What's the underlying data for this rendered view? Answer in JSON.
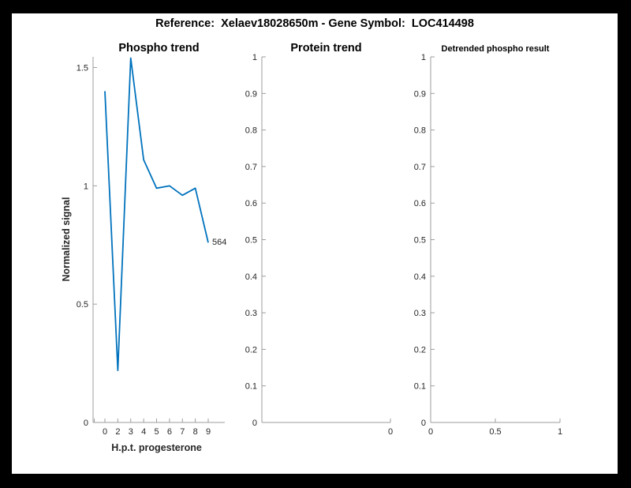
{
  "header": {
    "title": "Reference:  Xelaev18028650m - Gene Symbol:  LOC414498"
  },
  "colors": {
    "background": "#000000",
    "figure": "#ffffff",
    "line": "#0072bd",
    "axis": "#9d9d9d",
    "tick_text": "#262626",
    "title_text": "#000000"
  },
  "chart_data": [
    {
      "type": "line",
      "title": "Phospho trend",
      "xlabel": "H.p.t. progesterone",
      "ylabel": "Normalized signal",
      "categories": [
        "0",
        "2",
        "3",
        "4",
        "5",
        "6",
        "7",
        "8",
        "9"
      ],
      "values": [
        1.4,
        0.22,
        1.54,
        1.11,
        0.99,
        1.0,
        0.96,
        0.99,
        0.76
      ],
      "ylim": [
        0,
        1.545
      ],
      "yticks": [
        {
          "v": 0,
          "label": "0"
        },
        {
          "v": 0.5,
          "label": "0.5"
        },
        {
          "v": 1,
          "label": "1"
        },
        {
          "v": 1.5,
          "label": "1.5"
        }
      ],
      "end_label": "564",
      "grid": false,
      "legend": null
    },
    {
      "type": "line",
      "title": "Protein trend",
      "xlabel": "",
      "ylabel": "",
      "categories": [],
      "values": [],
      "xlim": [
        -1,
        0
      ],
      "ylim": [
        0,
        1
      ],
      "xticks": [
        {
          "v": 0,
          "label": "0"
        }
      ],
      "yticks": [
        {
          "v": 0,
          "label": "0"
        },
        {
          "v": 0.1,
          "label": "0.1"
        },
        {
          "v": 0.2,
          "label": "0.2"
        },
        {
          "v": 0.3,
          "label": "0.3"
        },
        {
          "v": 0.4,
          "label": "0.4"
        },
        {
          "v": 0.5,
          "label": "0.5"
        },
        {
          "v": 0.6,
          "label": "0.6"
        },
        {
          "v": 0.7,
          "label": "0.7"
        },
        {
          "v": 0.8,
          "label": "0.8"
        },
        {
          "v": 0.9,
          "label": "0.9"
        },
        {
          "v": 1,
          "label": "1"
        }
      ],
      "grid": false,
      "legend": null
    },
    {
      "type": "line",
      "title": "Detrended phospho result",
      "xlabel": "",
      "ylabel": "",
      "categories": [],
      "values": [],
      "xlim": [
        0,
        1
      ],
      "ylim": [
        0,
        1
      ],
      "xticks": [
        {
          "v": 0,
          "label": "0"
        },
        {
          "v": 0.5,
          "label": "0.5"
        },
        {
          "v": 1,
          "label": "1"
        }
      ],
      "yticks": [
        {
          "v": 0,
          "label": "0"
        },
        {
          "v": 0.1,
          "label": "0.1"
        },
        {
          "v": 0.2,
          "label": "0.2"
        },
        {
          "v": 0.3,
          "label": "0.3"
        },
        {
          "v": 0.4,
          "label": "0.4"
        },
        {
          "v": 0.5,
          "label": "0.5"
        },
        {
          "v": 0.6,
          "label": "0.6"
        },
        {
          "v": 0.7,
          "label": "0.7"
        },
        {
          "v": 0.8,
          "label": "0.8"
        },
        {
          "v": 0.9,
          "label": "0.9"
        },
        {
          "v": 1,
          "label": "1"
        }
      ],
      "grid": false,
      "legend": null
    }
  ]
}
